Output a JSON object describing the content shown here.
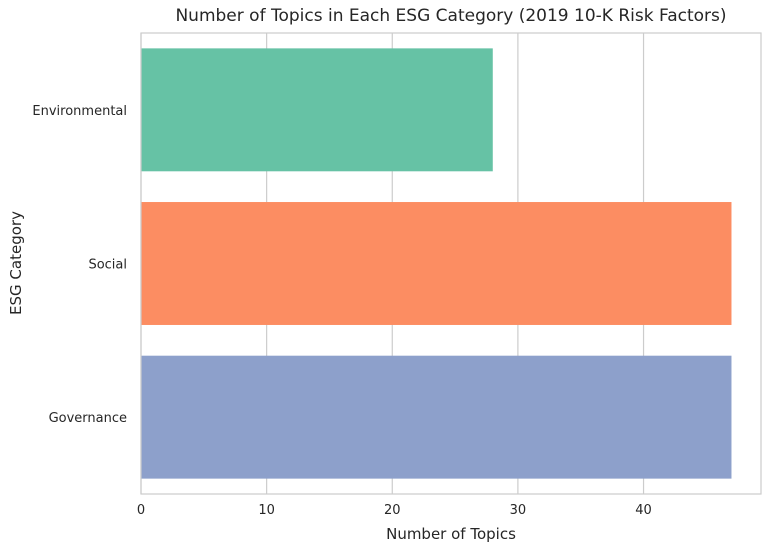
{
  "chart_data": {
    "type": "bar",
    "orientation": "horizontal",
    "title": "Number of Topics in Each ESG Category (2019 10-K Risk Factors)",
    "xlabel": "Number of Topics",
    "ylabel": "ESG Category",
    "categories": [
      "Environmental",
      "Social",
      "Governance"
    ],
    "values": [
      28,
      47,
      47
    ],
    "colors": [
      "#66c2a5",
      "#fc8d62",
      "#8da0cb"
    ],
    "xlim": [
      0,
      49.35
    ],
    "xticks": [
      0,
      10,
      20,
      30,
      40
    ],
    "grid": true,
    "legend": "none"
  }
}
